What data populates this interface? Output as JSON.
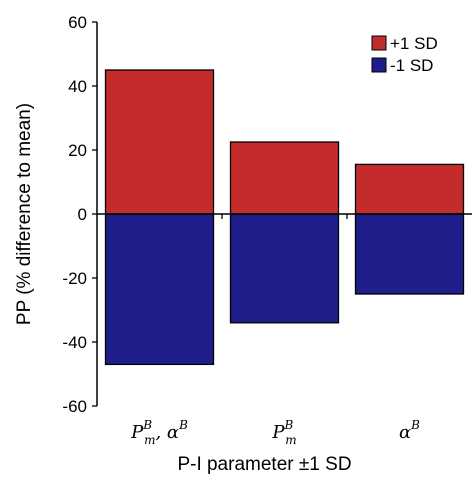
{
  "chart_data": {
    "type": "bar",
    "stacked_diverging": true,
    "categories": [
      {
        "base": "P",
        "sup": "B",
        "sub": "m",
        "rest": ", α",
        "rest_sup": "B"
      },
      {
        "base": "P",
        "sup": "B",
        "sub": "m",
        "rest": "",
        "rest_sup": ""
      },
      {
        "base": "α",
        "sup": "B",
        "sub": "",
        "rest": "",
        "rest_sup": ""
      }
    ],
    "series": [
      {
        "name": "+1 SD",
        "color": "#c42b2b",
        "values": [
          45,
          22.5,
          15.5
        ]
      },
      {
        "name": "-1 SD",
        "color": "#1d1e8a",
        "values": [
          -47,
          -34,
          -25
        ]
      }
    ],
    "xlabel": "P-I parameter ±1 SD",
    "ylabel": "PP (% difference to mean)",
    "ylim": [
      -60,
      60
    ],
    "yticks": [
      -60,
      -40,
      -20,
      0,
      20,
      40,
      60
    ],
    "grid": false,
    "legend_position": "top-right"
  }
}
